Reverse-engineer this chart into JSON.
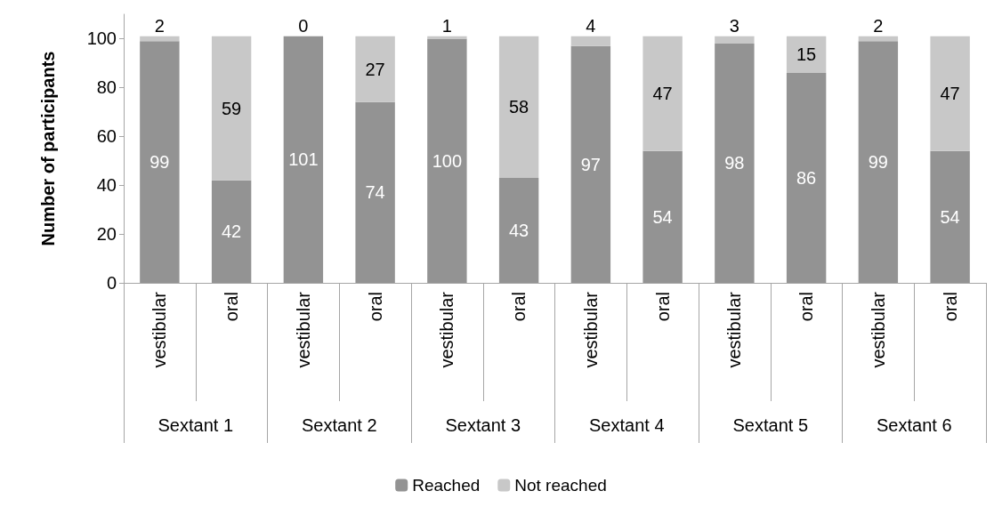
{
  "chart_data": {
    "type": "bar",
    "stacked": true,
    "ylabel": "Number of participants",
    "categories": [
      "vestibular",
      "oral",
      "vestibular",
      "oral",
      "vestibular",
      "oral",
      "vestibular",
      "oral",
      "vestibular",
      "oral",
      "vestibular",
      "oral"
    ],
    "annotations": [
      "Sextant 1",
      "Sextant 2",
      "Sextant 3",
      "Sextant 4",
      "Sextant 5",
      "Sextant 6"
    ],
    "series": [
      {
        "name": "Reached",
        "color": "#939393",
        "values": [
          99,
          42,
          101,
          74,
          100,
          43,
          97,
          54,
          98,
          86,
          99,
          54
        ]
      },
      {
        "name": "Not reached",
        "color": "#c8c8c8",
        "values": [
          2,
          59,
          0,
          27,
          1,
          58,
          4,
          47,
          3,
          15,
          2,
          47
        ]
      }
    ],
    "ylim": [
      0,
      110
    ],
    "yticks": [
      0,
      20,
      40,
      60,
      80,
      100
    ],
    "data_labels": true,
    "grid": false,
    "legend": "bottom"
  }
}
